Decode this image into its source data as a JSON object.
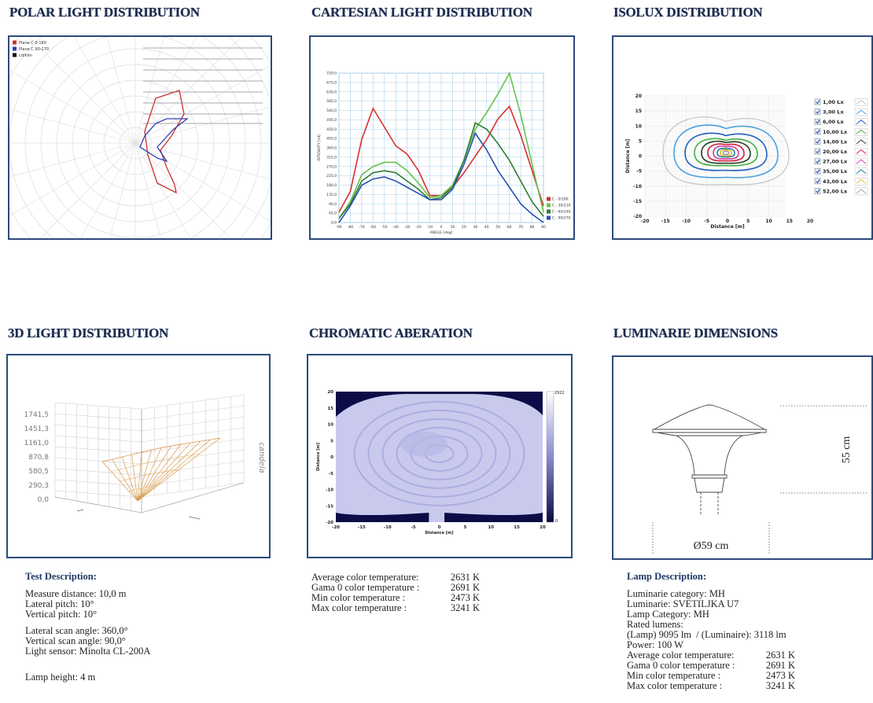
{
  "polar": {
    "title": "POLAR LIGHT DISTRIBUTION",
    "legend": [
      {
        "name": "Plane C 0-180",
        "color": "#d03030"
      },
      {
        "name": "Plane C 90-270",
        "color": "#3040b0"
      },
      {
        "name": "cd/klm",
        "color": "#111111"
      }
    ]
  },
  "chart_data": {
    "type": "line",
    "title": "CARTESIAN LIGHT DISTRIBUTION",
    "y_label": "INTENSITY [cd]",
    "x_label": "ANGLE [deg]",
    "x": [
      -90,
      -80,
      -70,
      -60,
      -50,
      -40,
      -30,
      -20,
      -10,
      0,
      10,
      20,
      30,
      40,
      50,
      60,
      70,
      80,
      90
    ],
    "xlim": [
      -90,
      90
    ],
    "xticks": [
      -90,
      -80,
      -70,
      -60,
      -50,
      -40,
      -30,
      -20,
      -10,
      0,
      10,
      20,
      30,
      40,
      50,
      60,
      70,
      80,
      90
    ],
    "ylim": [
      0,
      720
    ],
    "yticks": [
      {
        "value": 0,
        "label": "0,0"
      },
      {
        "value": 45,
        "label": "45,0"
      },
      {
        "value": 90,
        "label": "90,0"
      },
      {
        "value": 135,
        "label": "135,0"
      },
      {
        "value": 180,
        "label": "180,0"
      },
      {
        "value": 225,
        "label": "225,0"
      },
      {
        "value": 270,
        "label": "270,0"
      },
      {
        "value": 315,
        "label": "315,0"
      },
      {
        "value": 360,
        "label": "360,0"
      },
      {
        "value": 405,
        "label": "405,0"
      },
      {
        "value": 450,
        "label": "450,0"
      },
      {
        "value": 495,
        "label": "495,0"
      },
      {
        "value": 540,
        "label": "540,0"
      },
      {
        "value": 585,
        "label": "585,0"
      },
      {
        "value": 630,
        "label": "630,0"
      },
      {
        "value": 675,
        "label": "675,0"
      },
      {
        "value": 720,
        "label": "720,0"
      }
    ],
    "grid": true,
    "legend_position": "lower right",
    "series": [
      {
        "name": "C - 0/180",
        "color": "#d83030",
        "values": [
          50,
          150,
          400,
          550,
          460,
          370,
          330,
          250,
          130,
          130,
          170,
          240,
          320,
          400,
          500,
          560,
          420,
          250,
          80
        ]
      },
      {
        "name": "C - 30/210",
        "color": "#66c24a",
        "values": [
          20,
          100,
          230,
          270,
          290,
          290,
          250,
          190,
          120,
          130,
          180,
          300,
          450,
          530,
          620,
          720,
          520,
          280,
          50
        ]
      },
      {
        "name": "C - 60/240",
        "color": "#2e7d32",
        "values": [
          20,
          90,
          200,
          240,
          250,
          240,
          200,
          160,
          110,
          120,
          170,
          300,
          480,
          450,
          380,
          300,
          200,
          100,
          30
        ]
      },
      {
        "name": "C - 90/270",
        "color": "#2b50b0",
        "values": [
          0,
          80,
          180,
          210,
          220,
          200,
          170,
          140,
          110,
          110,
          160,
          280,
          430,
          350,
          250,
          170,
          90,
          40,
          0
        ]
      }
    ]
  },
  "isolux": {
    "title": "ISOLUX DISTRIBUTION",
    "y_label": "Distance [m]",
    "x_label": "Distance [m]",
    "yticks": [
      20,
      15,
      10,
      5,
      0,
      -5,
      -10,
      -15,
      -20
    ],
    "xticks": [
      -20,
      -15,
      -10,
      -5,
      0,
      5,
      10,
      15,
      20
    ],
    "legend": [
      {
        "name": "1,00 Lx",
        "color": "#c4c4c4"
      },
      {
        "name": "3,00 Lx",
        "color": "#4aa0e0"
      },
      {
        "name": "6,00 Lx",
        "color": "#2060c0"
      },
      {
        "name": "10,00 Lx",
        "color": "#40b040"
      },
      {
        "name": "14,00 Lx",
        "color": "#204020"
      },
      {
        "name": "20,00 Lx",
        "color": "#d02040"
      },
      {
        "name": "27,00 Lx",
        "color": "#d040a0"
      },
      {
        "name": "35,00 Lx",
        "color": "#2080a0"
      },
      {
        "name": "43,00 Lx",
        "color": "#e0c020"
      },
      {
        "name": "52,00 Lx",
        "color": "#a0a0c0"
      }
    ]
  },
  "distribution_3d": {
    "title": "3D LIGHT DISTRIBUTION",
    "axis_label": "candela",
    "ticks": [
      "1741,5",
      "1451,3",
      "1161,0",
      "870,8",
      "580,5",
      "290,3",
      "0,0"
    ]
  },
  "chromatic": {
    "title": "CHROMATIC ABERATION",
    "y_label": "Distance [m]",
    "x_label": "Distance [m]",
    "yticks": [
      20,
      15,
      10,
      5,
      0,
      -5,
      -10,
      -15,
      -20
    ],
    "xticks": [
      -20,
      -15,
      -10,
      -5,
      0,
      5,
      10,
      15,
      20
    ],
    "scale_max": "2922",
    "scale_min": "0"
  },
  "luminaire": {
    "title": "LUMINARIE DIMENSIONS",
    "height": "55 cm",
    "diameter": "Ø59 cm"
  },
  "test_description": {
    "title": "Test Description:",
    "groups": [
      [
        "Measure distance: 10,0 m",
        "Lateral pitch: 10°",
        "Vertical pitch: 10°"
      ],
      [
        "Lateral scan angle: 360,0°",
        "Vertical scan angle: 90,0°",
        "Light sensor: Minolta CL-200A"
      ],
      [
        "Lamp height: 4 m"
      ]
    ]
  },
  "color_temperatures": {
    "rows": [
      [
        "Average color temperature:",
        "2631 K"
      ],
      [
        "Gama 0 color temperature :",
        "2691 K"
      ],
      [
        "Min color temperature :",
        "2473 K"
      ],
      [
        "Max color temperature :",
        "3241 K"
      ]
    ]
  },
  "lamp_description": {
    "title": "Lamp Description:",
    "lines": [
      "Luminarie category: MH",
      "Luminarie: SVETILJKA U7",
      "Lamp Category: MH",
      "Rated lumens:",
      "(Lamp) 9095 lm  / (Luminaire): 3118 lm",
      "Power: 100 W"
    ],
    "rows": [
      [
        "Average color temperature:",
        "2631 K"
      ],
      [
        "Gama 0 color temperature :",
        "2691 K"
      ],
      [
        "Min color temperature :",
        "2473 K"
      ],
      [
        "Max color temperature :",
        "3241 K"
      ]
    ]
  }
}
